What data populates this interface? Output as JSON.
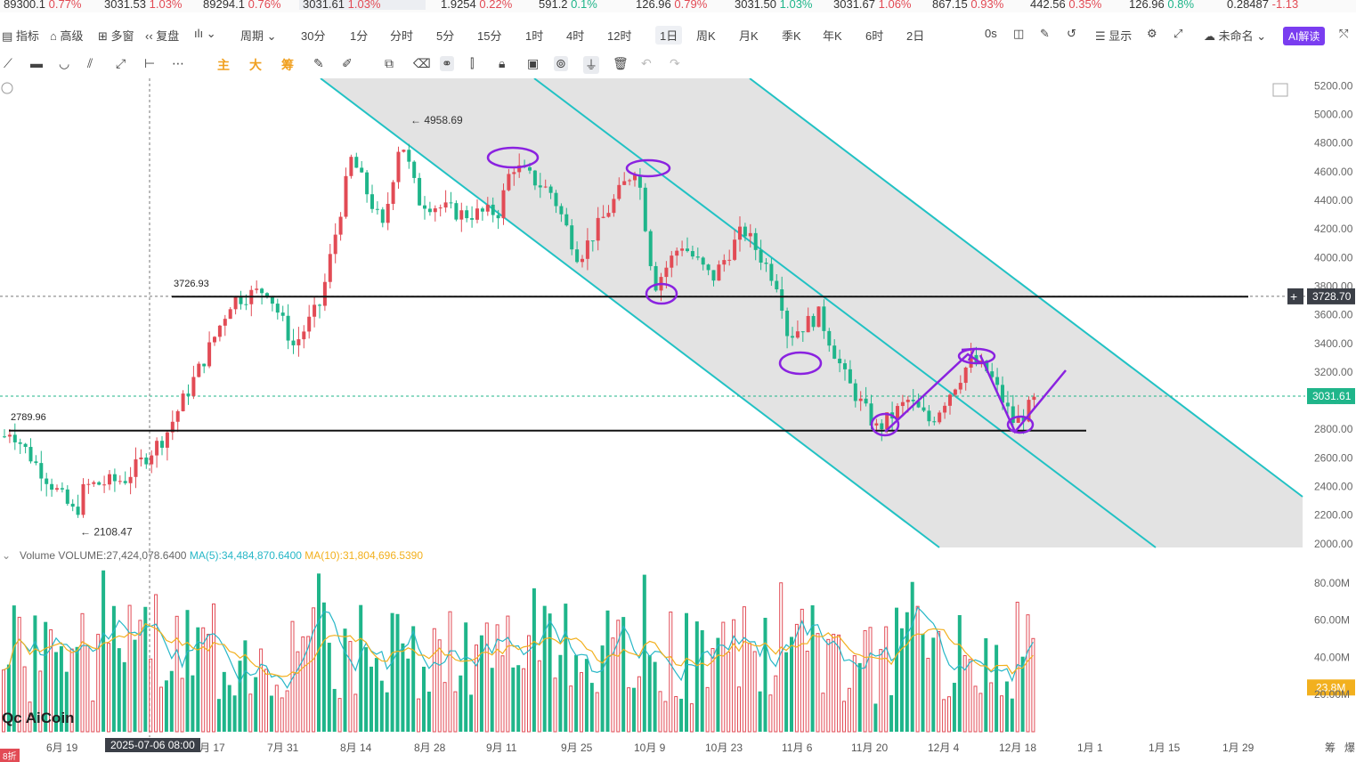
{
  "ticker": [
    {
      "price": "89300.1",
      "change": "0.77%",
      "dir": "up",
      "x": 4
    },
    {
      "price": "3031.53",
      "change": "1.03%",
      "dir": "up",
      "x": 117
    },
    {
      "price": "89294.1",
      "change": "0.76%",
      "dir": "up",
      "x": 228
    },
    {
      "price": "3031.61",
      "change": "1.03%",
      "dir": "up",
      "x": 336,
      "highlight": true
    },
    {
      "price": "1.9254",
      "change": "0.22%",
      "dir": "up",
      "x": 495
    },
    {
      "price": "591.2",
      "change": "0.1%",
      "dir": "dn",
      "x": 605
    },
    {
      "price": "126.96",
      "change": "0.79%",
      "dir": "up",
      "x": 714
    },
    {
      "price": "3031.50",
      "change": "1.03%",
      "dir": "dn",
      "x": 825
    },
    {
      "price": "3031.67",
      "change": "1.06%",
      "dir": "up",
      "x": 936
    },
    {
      "price": "867.15",
      "change": "0.93%",
      "dir": "up",
      "x": 1047
    },
    {
      "price": "442.56",
      "change": "0.35%",
      "dir": "up",
      "x": 1157
    },
    {
      "price": "126.96",
      "change": "0.8%",
      "dir": "dn",
      "x": 1268
    },
    {
      "price": "0.28487",
      "change": "-1.13",
      "dir": "up",
      "x": 1378
    }
  ],
  "toolbar": {
    "indicators": "指标",
    "advanced": "高级",
    "multi_window": "多窗",
    "replay": "复盘",
    "period": "周期",
    "intervals": [
      "30分",
      "1分",
      "分时",
      "5分",
      "15分",
      "1时",
      "4时",
      "12时",
      "1日",
      "周K",
      "月K",
      "季K",
      "年K",
      "6时",
      "2日"
    ],
    "active_interval": "1日",
    "countdown": "0s",
    "display": "显示",
    "layout_name": "未命名",
    "ai": "AI解读"
  },
  "drawing_tools": {
    "main": "主",
    "big": "大",
    "chip": "筹"
  },
  "chart_data": {
    "type": "candlestick",
    "symbol_price_axis": [
      "5200.00",
      "5000.00",
      "4800.00",
      "4600.00",
      "4400.00",
      "4200.00",
      "4000.00",
      "3800.00",
      "3600.00",
      "3400.00",
      "3200.00",
      "3000.00",
      "2800.00",
      "2600.00",
      "2400.00",
      "2200.00",
      "2000.00"
    ],
    "ylim": [
      1980,
      5240
    ],
    "current_price": "3031.61",
    "crosshair_price": "3728.70",
    "annotations": {
      "high": "4958.69",
      "low": "2108.47",
      "resistance": "3726.93",
      "support": "2789.96"
    },
    "x_dates": [
      "6月 19",
      "2025-07-06 08:00",
      "月 17",
      "7月 31",
      "8月 14",
      "8月 28",
      "9月 11",
      "9月 25",
      "10月 9",
      "10月 23",
      "11月 6",
      "11月 20",
      "12月 4",
      "12月 18",
      "1月 1",
      "1月 15",
      "1月 29",
      "筹",
      "爆"
    ],
    "crosshair_date": "2025-07-06 08:00",
    "volume": {
      "label": "Volume",
      "volume_text": "VOLUME:27,424,078.6400",
      "ma5_text": "MA(5):34,484,870.6400",
      "ma10_text": "MA(10):31,804,696.5390",
      "axis": [
        "80.00M",
        "60.00M",
        "40.00M",
        "20.00M"
      ],
      "current": "23.8M",
      "ylim": [
        0,
        90
      ]
    },
    "colors": {
      "up": "#e24b55",
      "down": "#1fb58a",
      "channel": "#22c2c4",
      "marker": "#8a22e0",
      "ma5": "#27b7c7",
      "ma10": "#f2b01e"
    }
  },
  "watermark": "AiCoin",
  "promo": "8折"
}
